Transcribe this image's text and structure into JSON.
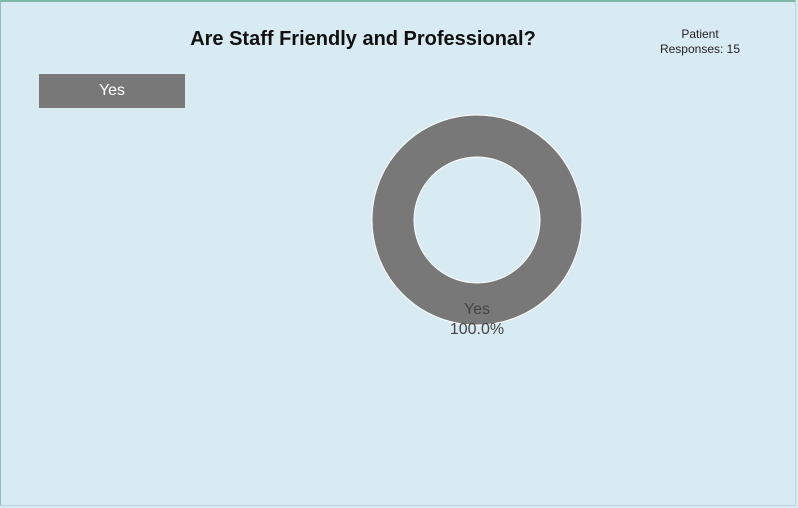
{
  "header": {
    "title": "Are Staff Friendly and Professional?",
    "responses_line1": "Patient",
    "responses_line2": "Responses: 15"
  },
  "legend": [
    {
      "label": "Yes",
      "color": "#787878"
    }
  ],
  "colors": {
    "background": "#d9ebf2",
    "slice": "#787878",
    "label": "#444444"
  },
  "chart_data": {
    "type": "pie",
    "title": "Are Staff Friendly and Professional?",
    "donut": true,
    "categories": [
      "Yes"
    ],
    "values": [
      100.0
    ],
    "labels": [
      "Yes",
      "100.0%"
    ],
    "legend_position": "top-left"
  }
}
